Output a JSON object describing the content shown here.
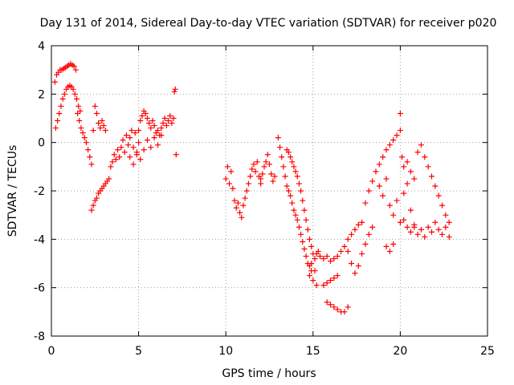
{
  "chart_data": {
    "type": "scatter",
    "title": "Day 131 of 2014, Sidereal Day-to-day VTEC variation (SDTVAR) for receiver p020",
    "xlabel": "GPS time / hours",
    "ylabel": "SDTVAR / TECUs",
    "xlim": [
      0,
      25
    ],
    "ylim": [
      -8,
      4
    ],
    "x_ticks": [
      0,
      5,
      10,
      15,
      20,
      25
    ],
    "y_ticks": [
      -8,
      -6,
      -4,
      -2,
      0,
      2,
      4
    ],
    "x_tick_labels": [
      "0",
      "5",
      "10",
      "15",
      "20",
      "25"
    ],
    "y_tick_labels": [
      "-8",
      "-6",
      "-4",
      "-2",
      "0",
      "2",
      "4"
    ],
    "grid": true,
    "marker": "plus",
    "marker_color": "#ff0000",
    "series": [
      {
        "name": "SDTVAR",
        "arcs": [
          {
            "x": [
              0.2,
              0.3,
              0.4,
              0.5,
              0.6,
              0.7,
              0.8,
              0.9,
              1.0,
              1.1,
              1.2,
              1.3,
              1.4
            ],
            "y": [
              2.5,
              2.8,
              2.9,
              3.0,
              3.0,
              3.05,
              3.1,
              3.15,
              3.2,
              3.25,
              3.2,
              3.15,
              3.0
            ]
          },
          {
            "x": [
              0.25,
              0.35,
              0.45,
              0.55,
              0.65,
              0.75,
              0.85,
              0.95,
              1.05,
              1.15,
              1.25,
              1.35,
              1.45,
              1.55,
              1.65
            ],
            "y": [
              0.6,
              0.9,
              1.2,
              1.5,
              1.8,
              2.0,
              2.2,
              2.3,
              2.35,
              2.3,
              2.2,
              2.0,
              1.8,
              1.5,
              1.3
            ]
          },
          {
            "x": [
              1.5,
              1.6,
              1.7,
              1.8,
              1.9,
              2.0,
              2.1,
              2.2,
              2.3
            ],
            "y": [
              1.2,
              0.9,
              0.6,
              0.4,
              0.2,
              0.0,
              -0.3,
              -0.6,
              -0.9
            ]
          },
          {
            "x": [
              2.3,
              2.4,
              2.5,
              2.6,
              2.7,
              2.8,
              2.9,
              3.0,
              3.1,
              3.2,
              3.3
            ],
            "y": [
              -2.8,
              -2.6,
              -2.4,
              -2.3,
              -2.1,
              -2.0,
              -1.9,
              -1.8,
              -1.7,
              -1.6,
              -1.5
            ]
          },
          {
            "x": [
              2.4,
              2.5,
              2.6,
              2.7,
              2.8,
              2.9,
              3.0,
              3.1
            ],
            "y": [
              0.5,
              1.5,
              1.2,
              0.8,
              0.6,
              0.9,
              0.7,
              0.5
            ]
          },
          {
            "x": [
              3.4,
              3.5,
              3.6,
              3.7,
              3.8,
              3.9,
              4.0,
              4.1,
              4.2,
              4.3,
              4.4,
              4.5,
              4.6,
              4.7,
              4.8,
              4.9,
              5.0
            ],
            "y": [
              -1.0,
              -0.8,
              -0.5,
              -0.7,
              -0.3,
              -0.6,
              -0.2,
              0.1,
              -0.4,
              0.3,
              -0.1,
              0.2,
              0.5,
              -0.2,
              0.4,
              -0.5,
              0.0
            ]
          },
          {
            "x": [
              5.0,
              5.1,
              5.2,
              5.3,
              5.4,
              5.5,
              5.6,
              5.7,
              5.8,
              5.9,
              6.0,
              6.1,
              6.2,
              6.3,
              6.4,
              6.5,
              6.6,
              6.7,
              6.8,
              6.9,
              7.0
            ],
            "y": [
              0.5,
              0.9,
              1.1,
              1.3,
              1.2,
              1.0,
              0.8,
              0.6,
              0.9,
              0.7,
              0.4,
              0.5,
              0.3,
              0.6,
              0.8,
              1.0,
              0.7,
              0.9,
              1.1,
              0.8,
              1.0
            ]
          },
          {
            "x": [
              4.5,
              4.7,
              4.9,
              5.1,
              5.3,
              5.5,
              5.7,
              5.9,
              6.1,
              6.3
            ],
            "y": [
              -0.6,
              -0.9,
              -0.4,
              -0.7,
              -0.3,
              0.1,
              -0.2,
              0.2,
              -0.1,
              0.3
            ]
          },
          {
            "x": [
              7.05,
              7.1,
              7.15
            ],
            "y": [
              2.1,
              2.2,
              -0.5
            ]
          },
          {
            "x": [
              10.0,
              10.1,
              10.2,
              10.3,
              10.4,
              10.5,
              10.6,
              10.7,
              10.8,
              10.9,
              11.0,
              11.1,
              11.2,
              11.3,
              11.4,
              11.5,
              11.6,
              11.7,
              11.8,
              11.9,
              12.0
            ],
            "y": [
              -1.5,
              -1.0,
              -1.7,
              -1.2,
              -1.9,
              -2.4,
              -2.7,
              -2.5,
              -2.9,
              -3.1,
              -2.6,
              -2.3,
              -2.0,
              -1.7,
              -1.4,
              -1.1,
              -0.9,
              -1.2,
              -0.8,
              -1.4,
              -1.7
            ]
          },
          {
            "x": [
              12.0,
              12.1,
              12.2,
              12.3,
              12.4,
              12.5,
              12.6,
              12.7,
              12.8
            ],
            "y": [
              -1.5,
              -1.3,
              -1.0,
              -0.8,
              -0.5,
              -0.9,
              -1.3,
              -1.6,
              -1.4
            ]
          },
          {
            "x": [
              13.0,
              13.1,
              13.2,
              13.3,
              13.4,
              13.5,
              13.6,
              13.7,
              13.8,
              13.9,
              14.0,
              14.1,
              14.2,
              14.3,
              14.4,
              14.5,
              14.6,
              14.7,
              14.8,
              14.9
            ],
            "y": [
              0.2,
              -0.2,
              -0.6,
              -1.0,
              -1.4,
              -1.8,
              -2.0,
              -2.2,
              -2.5,
              -2.8,
              -3.0,
              -3.2,
              -3.5,
              -3.8,
              -4.1,
              -4.4,
              -4.7,
              -5.0,
              -5.1,
              -5.3
            ]
          },
          {
            "x": [
              13.5,
              13.6,
              13.7,
              13.8,
              13.9,
              14.0,
              14.1,
              14.2,
              14.3,
              14.4,
              14.5,
              14.6,
              14.7,
              14.8,
              14.9,
              15.0,
              15.1
            ],
            "y": [
              -0.3,
              -0.4,
              -0.6,
              -0.8,
              -1.0,
              -1.2,
              -1.4,
              -1.7,
              -2.0,
              -2.4,
              -2.8,
              -3.2,
              -3.6,
              -4.0,
              -4.3,
              -4.6,
              -4.8
            ]
          },
          {
            "x": [
              14.8,
              14.9,
              15.0,
              15.1,
              15.2,
              15.3
            ],
            "y": [
              -5.5,
              -5.0,
              -5.7,
              -5.3,
              -5.9,
              -4.5
            ]
          },
          {
            "x": [
              15.2,
              15.4,
              15.6,
              15.8,
              16.0,
              16.2,
              16.4,
              16.6,
              16.8,
              17.0,
              17.2,
              17.4,
              17.6,
              17.8
            ],
            "y": [
              -4.6,
              -4.7,
              -4.8,
              -4.7,
              -4.9,
              -4.8,
              -4.7,
              -4.5,
              -4.3,
              -4.0,
              -3.8,
              -3.6,
              -3.4,
              -3.3
            ]
          },
          {
            "x": [
              15.6,
              15.8,
              16.0,
              16.2,
              16.4
            ],
            "y": [
              -5.9,
              -5.8,
              -5.7,
              -5.6,
              -5.5
            ]
          },
          {
            "x": [
              15.8,
              16.0,
              16.2,
              16.4,
              16.6,
              16.8,
              17.0
            ],
            "y": [
              -6.6,
              -6.7,
              -6.8,
              -6.9,
              -7.0,
              -7.0,
              -6.8
            ]
          },
          {
            "x": [
              17.0,
              17.2,
              17.4,
              17.6,
              17.8,
              18.0,
              18.2,
              18.4
            ],
            "y": [
              -4.5,
              -5.0,
              -5.4,
              -5.1,
              -4.6,
              -4.2,
              -3.8,
              -3.5
            ]
          },
          {
            "x": [
              18.0,
              18.2,
              18.4,
              18.6,
              18.8,
              19.0,
              19.2,
              19.4,
              19.6,
              19.8,
              20.0
            ],
            "y": [
              -2.5,
              -2.0,
              -1.6,
              -1.2,
              -0.9,
              -0.6,
              -0.3,
              -0.1,
              0.1,
              0.3,
              0.5
            ]
          },
          {
            "x": [
              18.8,
              19.0,
              19.2,
              19.4,
              19.6,
              19.8,
              20.0,
              20.2,
              20.4,
              20.6,
              20.8
            ],
            "y": [
              -1.8,
              -2.2,
              -1.5,
              -2.6,
              -3.0,
              -2.4,
              -3.3,
              -2.1,
              -1.7,
              -2.8,
              -3.5
            ]
          },
          {
            "x": [
              19.2,
              19.4,
              19.6
            ],
            "y": [
              -4.3,
              -4.5,
              -4.2
            ]
          },
          {
            "x": [
              20.0,
              20.1,
              20.2,
              20.4,
              20.6,
              20.8,
              21.0,
              21.2,
              21.4,
              21.6,
              21.8,
              22.0,
              22.2,
              22.4,
              22.6,
              22.8
            ],
            "y": [
              1.2,
              -0.6,
              -1.0,
              -0.8,
              -1.2,
              -1.5,
              -0.4,
              -0.1,
              -0.6,
              -1.0,
              -1.4,
              -1.8,
              -2.2,
              -2.6,
              -3.0,
              -3.3
            ]
          },
          {
            "x": [
              20.2,
              20.4,
              20.6,
              20.8,
              21.0,
              21.2,
              21.4,
              21.6,
              21.8,
              22.0,
              22.2,
              22.4,
              22.6,
              22.8
            ],
            "y": [
              -3.2,
              -3.5,
              -3.7,
              -3.4,
              -3.8,
              -3.6,
              -3.9,
              -3.5,
              -3.7,
              -3.3,
              -3.6,
              -3.8,
              -3.5,
              -3.9
            ]
          }
        ]
      }
    ]
  }
}
